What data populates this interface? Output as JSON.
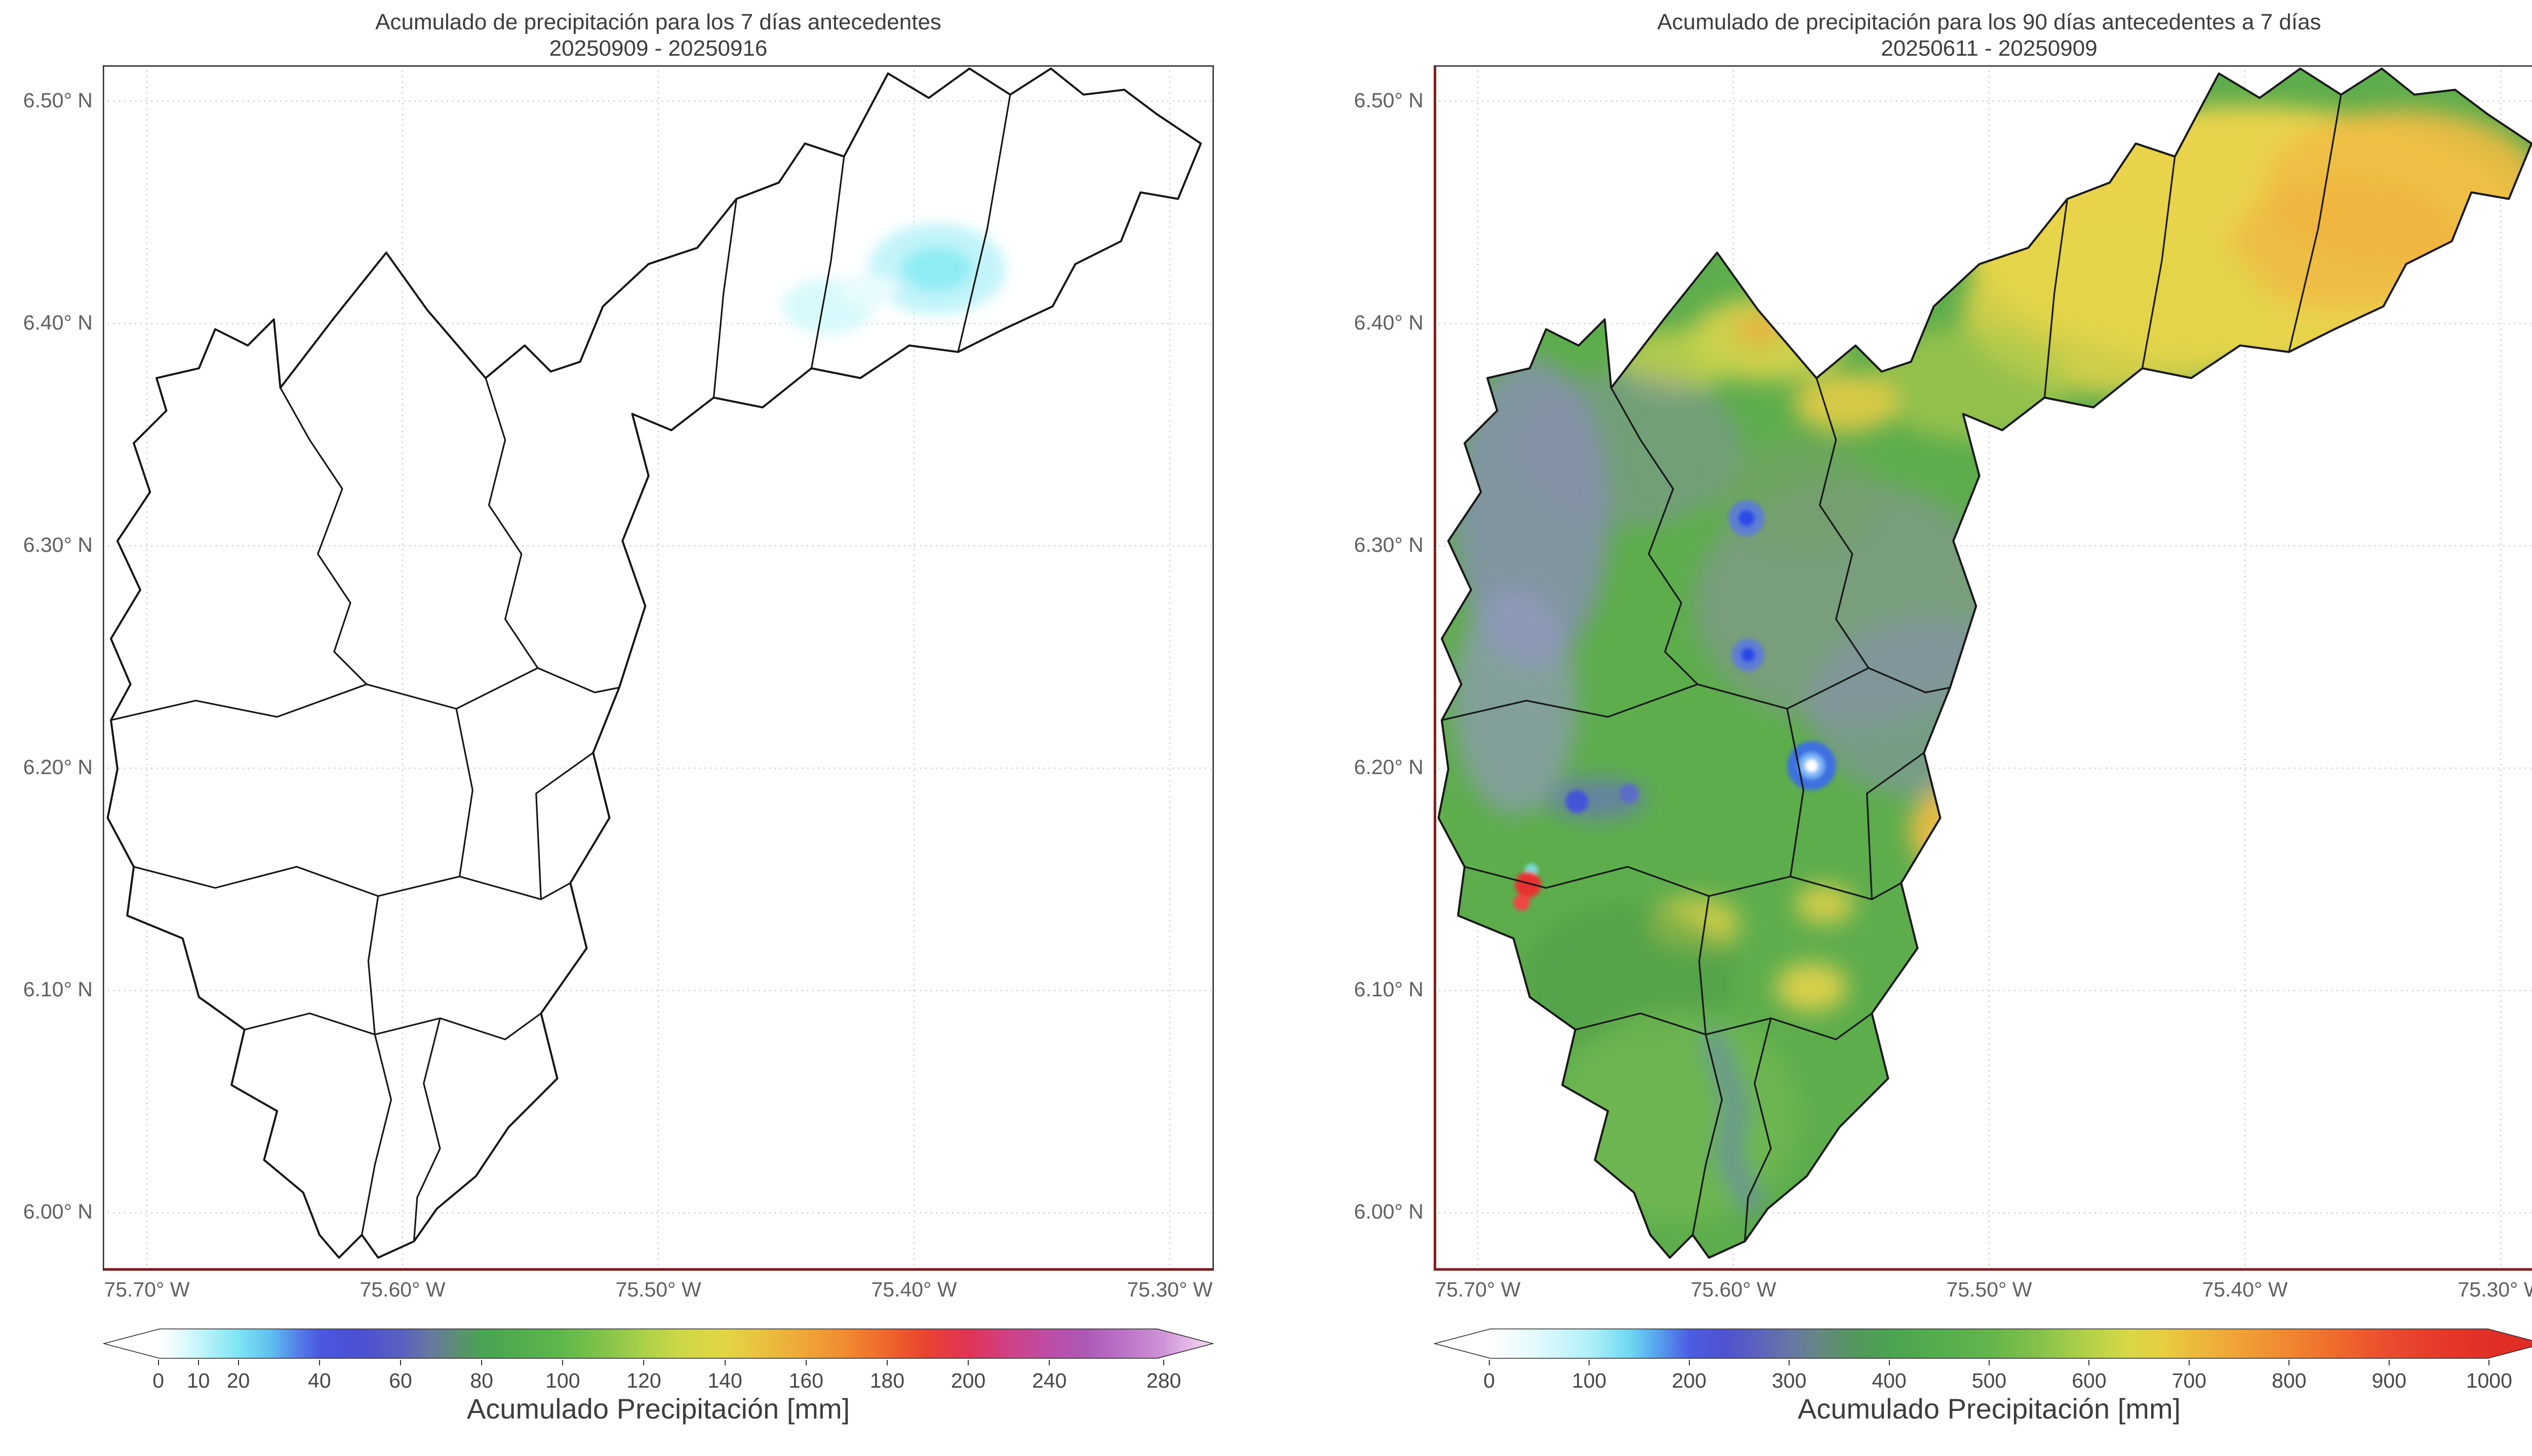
{
  "figure": {
    "type": "precipitation-accumulation-maps",
    "background_color": "#ffffff"
  },
  "panels": [
    {
      "title": "Acumulado de precipitación para los 7 días antecedentes",
      "subtitle": "20250909 - 20250916",
      "colorbar": {
        "label": "Acumulado Precipitación [mm]",
        "extend": "both",
        "tick_labels": [
          "0",
          "10",
          "20",
          "40",
          "60",
          "80",
          "100",
          "120",
          "140",
          "160",
          "180",
          "200",
          "240",
          "280"
        ],
        "tick_pcts": [
          5.0,
          8.6,
          12.2,
          19.5,
          26.8,
          34.1,
          41.4,
          48.7,
          56.0,
          63.3,
          70.6,
          77.9,
          85.2,
          95.5
        ],
        "gradient_stops": [
          [
            0,
            "#ffffff"
          ],
          [
            5,
            "#ffffff"
          ],
          [
            7,
            "#e2fbfd"
          ],
          [
            9.5,
            "#b2f1f8"
          ],
          [
            12.2,
            "#7ce4f4"
          ],
          [
            15,
            "#5fc0ef"
          ],
          [
            17.5,
            "#5380e8"
          ],
          [
            19.5,
            "#4a58e0"
          ],
          [
            23,
            "#4c4fd3"
          ],
          [
            26.8,
            "#5a60bf"
          ],
          [
            29.5,
            "#67789f"
          ],
          [
            32,
            "#5b9070"
          ],
          [
            34.1,
            "#48a353"
          ],
          [
            38,
            "#53ae4c"
          ],
          [
            41.4,
            "#60b84b"
          ],
          [
            45,
            "#82c34a"
          ],
          [
            48.7,
            "#abd049"
          ],
          [
            52,
            "#cdd847"
          ],
          [
            56,
            "#e2d643"
          ],
          [
            59.5,
            "#e9c03e"
          ],
          [
            63.3,
            "#efa537"
          ],
          [
            67,
            "#f18931"
          ],
          [
            70.6,
            "#ef662b"
          ],
          [
            74,
            "#e9442f"
          ],
          [
            77.9,
            "#e03355"
          ],
          [
            81.5,
            "#d04184"
          ],
          [
            85.2,
            "#bd4da6"
          ],
          [
            88.5,
            "#ad58b6"
          ],
          [
            92,
            "#bb74c6"
          ],
          [
            95.5,
            "#cf93d7"
          ],
          [
            98,
            "#e5bce8"
          ],
          [
            100,
            "#f4dcf4"
          ]
        ]
      }
    },
    {
      "title": "Acumulado de precipitación para los 90 días antecedentes a 7 días",
      "subtitle": "20250611 - 20250909",
      "colorbar": {
        "label": "Acumulado Precipitación [mm]",
        "extend": "both",
        "tick_labels": [
          "0",
          "100",
          "200",
          "300",
          "400",
          "500",
          "600",
          "700",
          "800",
          "900",
          "1000"
        ],
        "tick_pcts": [
          5,
          14,
          23,
          32,
          41,
          50,
          59,
          68,
          77,
          86,
          95
        ],
        "gradient_stops": [
          [
            0,
            "#ffffff"
          ],
          [
            5,
            "#ffffff"
          ],
          [
            9,
            "#e4fafd"
          ],
          [
            14,
            "#b0f0f8"
          ],
          [
            17.5,
            "#6fd9f2"
          ],
          [
            20,
            "#57a5ee"
          ],
          [
            23,
            "#4b5ce2"
          ],
          [
            26,
            "#4f52d0"
          ],
          [
            29,
            "#5b61bd"
          ],
          [
            32,
            "#6876a4"
          ],
          [
            35,
            "#648a7e"
          ],
          [
            38,
            "#53985c"
          ],
          [
            41,
            "#4aa351"
          ],
          [
            45.5,
            "#55ad4d"
          ],
          [
            50,
            "#63b54b"
          ],
          [
            54.5,
            "#86c24a"
          ],
          [
            59,
            "#b4d148"
          ],
          [
            62.5,
            "#d7d845"
          ],
          [
            65.5,
            "#e6cf41"
          ],
          [
            68,
            "#ebbd3c"
          ],
          [
            72,
            "#f0a436"
          ],
          [
            77,
            "#f08731"
          ],
          [
            81,
            "#ef6c2b"
          ],
          [
            86,
            "#ea4c2e"
          ],
          [
            91,
            "#e53829"
          ],
          [
            95,
            "#e12f27"
          ],
          [
            100,
            "#de2b26"
          ]
        ]
      }
    }
  ],
  "axes": {
    "y_tick_labels": [
      "6.50° N",
      "6.40° N",
      "6.30° N",
      "6.20° N",
      "6.10° N",
      "6.00° N"
    ],
    "x_tick_labels": [
      "75.70° W",
      "75.60° W",
      "75.50° W",
      "75.40° W",
      "75.30° W"
    ]
  },
  "chart_data": [
    {
      "type": "heatmap",
      "title": "Acumulado de precipitación para los 7 días antecedentes",
      "subtitle": "20250909 - 20250916",
      "x_ticks_deg_w": [
        75.7,
        75.6,
        75.5,
        75.4,
        75.3
      ],
      "y_ticks_deg_n": [
        6.5,
        6.4,
        6.3,
        6.2,
        6.1,
        6.0
      ],
      "grid": true,
      "colorbar_label": "Acumulado Precipitación [mm]",
      "colorbar_ticks_mm": [
        0,
        10,
        20,
        40,
        60,
        80,
        100,
        120,
        140,
        160,
        180,
        200,
        240,
        280
      ],
      "colorbar_extend": "both",
      "summary": "Municipal boundary map almost entirely at 0 mm (white); two faint cyan patches of roughly 10-20 mm centered near 6.42° N 75.34° W and 6.41° N 75.39° W."
    },
    {
      "type": "heatmap",
      "title": "Acumulado de precipitación para los 90 días antecedentes a 7 días",
      "subtitle": "20250611 - 20250909",
      "x_ticks_deg_w": [
        75.7,
        75.6,
        75.5,
        75.4,
        75.3
      ],
      "y_ticks_deg_n": [
        6.5,
        6.4,
        6.3,
        6.2,
        6.1,
        6.0
      ],
      "grid": true,
      "colorbar_label": "Acumulado Precipitación [mm]",
      "colorbar_ticks_mm": [
        0,
        100,
        200,
        300,
        400,
        500,
        600,
        700,
        800,
        900,
        1000
      ],
      "colorbar_extend": "both",
      "summary": "Region mostly 400-600 mm (greens); northeast arm 600-800 mm (yellow-orange); slate blue-purple pockets of 200-350 mm along the west edge and center; isolated blue minima (~100-200 mm) near 6.32, 6.25 and 6.20° N; small red maximum above 1000 mm on the west edge near 6.15° N; orange patch around 700 mm near 6.17° N 75.42° W."
    }
  ]
}
